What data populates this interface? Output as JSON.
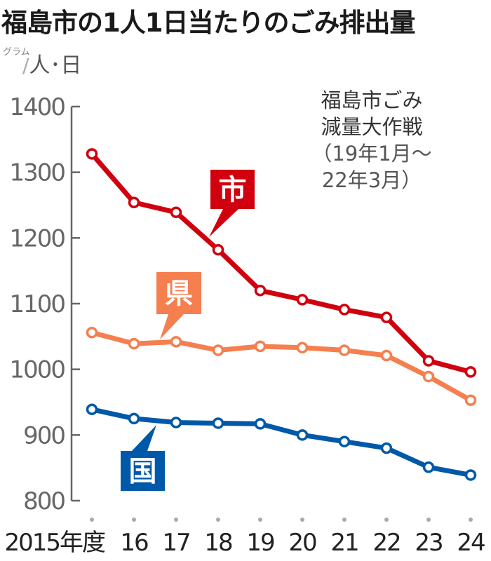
{
  "header": {
    "title": "福島市の1人1日当たりのごみ排出量",
    "unit_small": "グラム",
    "unit_slash": "/",
    "unit_main": "人･日"
  },
  "annotation": {
    "line1": "福島市ごみ",
    "line2": "減量大作戦",
    "line3": "（19年1月～",
    "line4": "22年3月）"
  },
  "colors": {
    "city": "#d0000f",
    "prefecture": "#f57f4e",
    "nation": "#0059a8",
    "axis": "#666666"
  },
  "chart_data": {
    "type": "line",
    "title": "福島市の1人1日当たりのごみ排出量",
    "ylabel": "グラム/人･日",
    "xlabel": "年度",
    "ylim": [
      800,
      1400
    ],
    "yticks": [
      800,
      900,
      1000,
      1100,
      1200,
      1300,
      1400
    ],
    "categories": [
      "2015年度",
      "16",
      "17",
      "18",
      "19",
      "20",
      "21",
      "22",
      "23",
      "24"
    ],
    "grid": false,
    "legend_position": "inline labels",
    "series": [
      {
        "name": "市",
        "color": "#d0000f",
        "values": [
          1328,
          1254,
          1239,
          1182,
          1120,
          1106,
          1091,
          1079,
          1013,
          996
        ]
      },
      {
        "name": "県",
        "color": "#f57f4e",
        "values": [
          1056,
          1039,
          1042,
          1029,
          1035,
          1033,
          1029,
          1021,
          989,
          953
        ]
      },
      {
        "name": "国",
        "color": "#0059a8",
        "values": [
          939,
          925,
          919,
          918,
          917,
          900,
          890,
          880,
          851,
          839
        ]
      }
    ],
    "annotations": [
      "福島市ごみ減量大作戦（19年1月～22年3月）"
    ]
  }
}
